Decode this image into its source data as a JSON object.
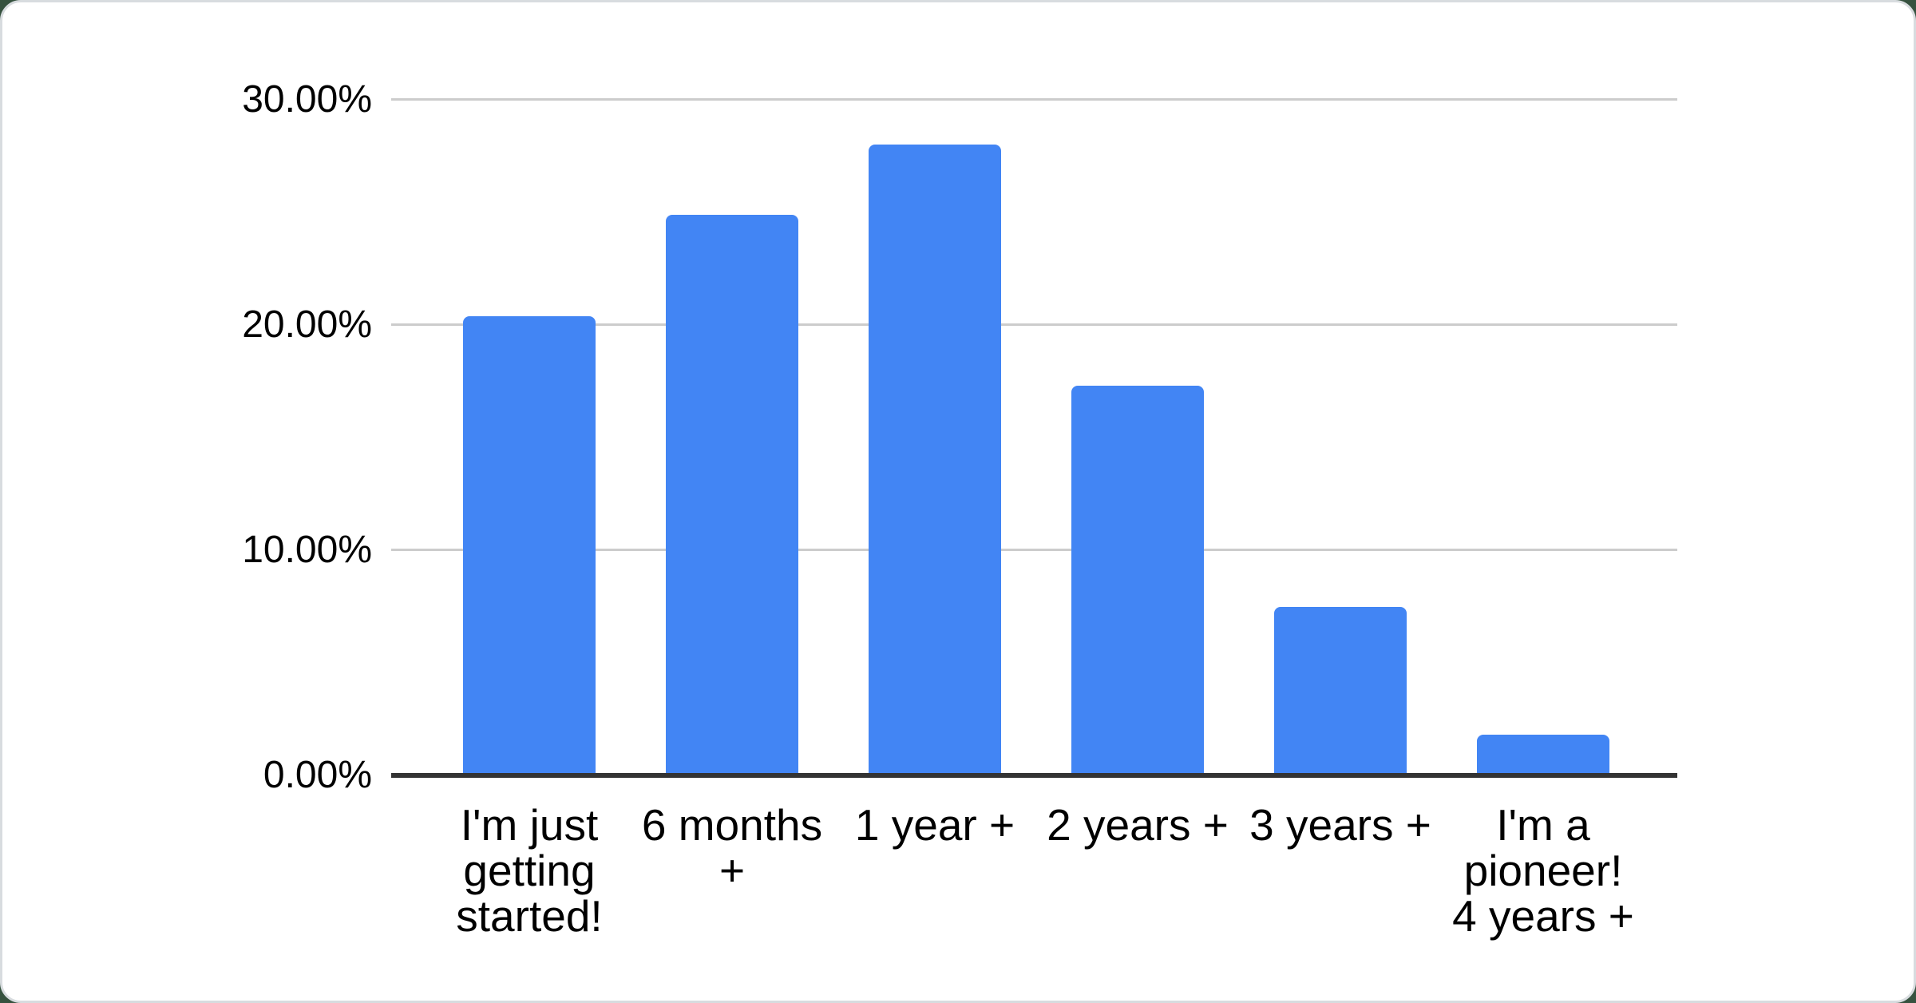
{
  "page": {
    "background_color": "#36523f"
  },
  "card": {
    "background_color": "#ffffff",
    "border_color": "#d8dcdf"
  },
  "chart_data": {
    "type": "bar",
    "title": "",
    "xlabel": "",
    "ylabel": "",
    "categories": [
      "I'm just getting started!",
      "6 months +",
      "1 year +",
      "2 years +",
      "3 years +",
      "I'm a pioneer! 4 years +"
    ],
    "category_display_lines": [
      [
        "I'm just",
        "getting",
        "started!"
      ],
      [
        "6 months",
        "+"
      ],
      [
        "1 year +"
      ],
      [
        "2 years +"
      ],
      [
        "3 years +"
      ],
      [
        "I'm a",
        "pioneer!",
        "4 years +"
      ]
    ],
    "values": [
      20.4,
      24.9,
      28.0,
      17.3,
      7.5,
      1.8
    ],
    "value_unit": "%",
    "ylim": [
      0,
      30
    ],
    "yticks": [
      0,
      10,
      20,
      30
    ],
    "ytick_labels": [
      "0.00%",
      "10.00%",
      "20.00%",
      "30.00%"
    ],
    "grid": true,
    "legend": "none",
    "bar_color": "#4285f4",
    "gridline_color": "#cccccc",
    "axis_line_color": "#333333",
    "text_color": "#000000"
  }
}
